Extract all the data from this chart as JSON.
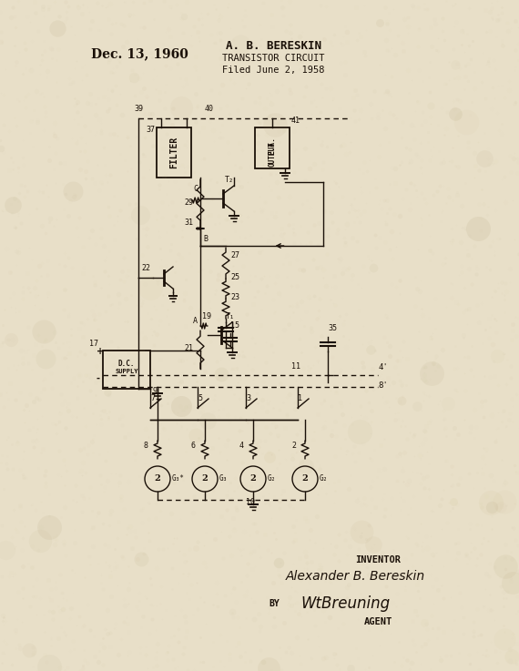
{
  "bg_color": "#e8dfc8",
  "ink_color": "#1a1008",
  "title_date": "Dec. 13, 1960",
  "title_name": "A. B. BERESKIN",
  "title_circuit": "TRANSISTOR CIRCUIT",
  "title_filed": "Filed June 2, 1958",
  "inventor_label": "INVENTOR",
  "inventor_name": "Alexander B. Bereskin",
  "by_label": "BY",
  "agent_label": "AGENT",
  "figsize": [
    5.7,
    7.37
  ],
  "dpi": 100
}
